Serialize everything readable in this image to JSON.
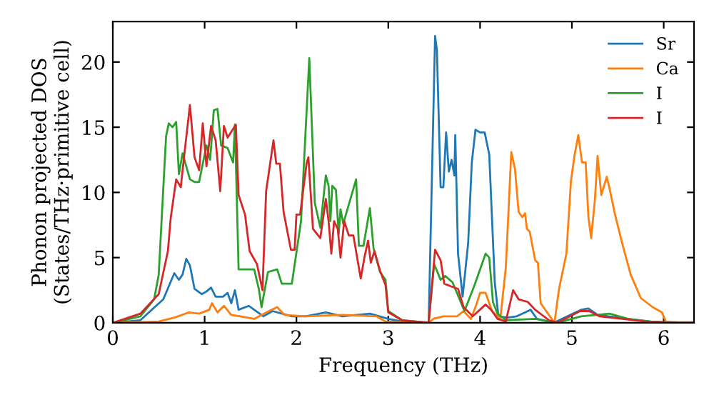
{
  "chart_data": {
    "type": "line",
    "xlabel": "Frequency (THz)",
    "ylabel": "Phonon projected DOS\n(States/THz·primitive cell)",
    "xlim": [
      0,
      6.33
    ],
    "ylim": [
      0,
      23.1
    ],
    "xticks": [
      0,
      1,
      2,
      3,
      4,
      5,
      6
    ],
    "yticks": [
      0,
      5,
      10,
      15,
      20
    ],
    "grid": false,
    "legend": "top right",
    "marker": "none",
    "line_style": "solid",
    "series": [
      {
        "name": "Sr",
        "color": "#1f77b4",
        "x": [
          0,
          0.3,
          0.55,
          0.67,
          0.72,
          0.76,
          0.8,
          0.84,
          0.89,
          0.97,
          1.02,
          1.07,
          1.12,
          1.2,
          1.25,
          1.29,
          1.33,
          1.37,
          1.48,
          1.64,
          1.74,
          1.95,
          2.1,
          2.32,
          2.5,
          2.8,
          3.0,
          3.15,
          3.44,
          3.51,
          3.53,
          3.57,
          3.6,
          3.63,
          3.66,
          3.69,
          3.72,
          3.73,
          3.76,
          3.81,
          3.87,
          3.91,
          3.95,
          4.0,
          4.05,
          4.1,
          4.16,
          4.2,
          4.3,
          4.4,
          4.55,
          4.62,
          4.8,
          5.1,
          5.18,
          5.28,
          5.4,
          5.6,
          5.86,
          6.33
        ],
        "values": [
          0,
          0.2,
          1.8,
          3.8,
          3.3,
          3.7,
          4.9,
          4.4,
          2.6,
          2.2,
          2.4,
          2.7,
          2.0,
          2.0,
          2.3,
          1.5,
          2.5,
          1.0,
          1.3,
          0.5,
          0.9,
          0.5,
          0.5,
          0.8,
          0.5,
          0.7,
          0.3,
          0.1,
          0,
          22.0,
          20.9,
          10.4,
          10.4,
          14.6,
          11.6,
          12.5,
          11.3,
          14.4,
          5.3,
          2.0,
          6.1,
          12.3,
          14.8,
          14.6,
          14.6,
          12.9,
          3.1,
          0.5,
          0.4,
          0.5,
          1.0,
          0.3,
          0,
          1.0,
          1.1,
          0.6,
          0.5,
          0.3,
          0.1,
          0
        ]
      },
      {
        "name": "Ca",
        "color": "#ff7f0e",
        "x": [
          0,
          0.5,
          0.67,
          0.83,
          0.94,
          1.05,
          1.08,
          1.14,
          1.21,
          1.29,
          1.39,
          1.54,
          1.7,
          1.79,
          1.87,
          2.1,
          2.5,
          2.87,
          2.97,
          3.44,
          3.49,
          3.6,
          3.75,
          3.82,
          3.9,
          3.96,
          4.0,
          4.06,
          4.13,
          4.22,
          4.28,
          4.34,
          4.38,
          4.42,
          4.46,
          4.49,
          4.51,
          4.54,
          4.6,
          4.63,
          4.66,
          4.75,
          4.81,
          4.86,
          4.94,
          4.99,
          5.03,
          5.07,
          5.11,
          5.15,
          5.18,
          5.21,
          5.25,
          5.28,
          5.32,
          5.38,
          5.41,
          5.47,
          5.54,
          5.64,
          5.75,
          5.88,
          5.98,
          6.03,
          6.33
        ],
        "values": [
          0,
          0.1,
          0.4,
          0.8,
          0.7,
          1.0,
          1.5,
          0.8,
          1.3,
          0.6,
          0.5,
          0.3,
          0.9,
          1.2,
          0.6,
          0.5,
          0.6,
          0.5,
          0.1,
          0,
          0.3,
          0.5,
          0.5,
          0.9,
          0.3,
          1.4,
          2.3,
          2.3,
          0.9,
          0.3,
          4.2,
          13.1,
          11.8,
          8.5,
          8.1,
          8.4,
          7.2,
          7.0,
          4.8,
          4.6,
          1.5,
          0.6,
          0,
          2.6,
          5.3,
          10.9,
          12.9,
          14.4,
          12.3,
          12.3,
          8.1,
          6.5,
          9.4,
          12.8,
          9.8,
          11.2,
          10.3,
          8.3,
          6.3,
          3.7,
          1.9,
          1.2,
          0.8,
          0,
          0
        ]
      },
      {
        "name": "I",
        "color": "#2ca02c",
        "x": [
          0,
          0.3,
          0.45,
          0.5,
          0.58,
          0.61,
          0.65,
          0.69,
          0.72,
          0.76,
          0.84,
          0.89,
          0.94,
          1.02,
          1.06,
          1.1,
          1.14,
          1.18,
          1.25,
          1.31,
          1.33,
          1.37,
          1.54,
          1.59,
          1.62,
          1.69,
          1.79,
          1.84,
          1.95,
          2.05,
          2.14,
          2.2,
          2.26,
          2.32,
          2.35,
          2.37,
          2.39,
          2.43,
          2.46,
          2.48,
          2.51,
          2.65,
          2.68,
          2.73,
          2.8,
          2.84,
          2.91,
          2.97,
          3.0,
          3.15,
          3.44,
          3.5,
          3.57,
          3.62,
          3.7,
          3.83,
          3.94,
          4.06,
          4.1,
          4.14,
          4.19,
          4.28,
          4.6,
          4.84,
          5.1,
          5.41,
          5.61,
          5.95,
          6.33
        ],
        "values": [
          0,
          0.5,
          1.8,
          3.7,
          14.3,
          15.3,
          15.0,
          15.4,
          11.4,
          13.0,
          11.0,
          10.8,
          10.8,
          13.6,
          12.5,
          16.3,
          16.4,
          13.6,
          13.4,
          12.3,
          15.2,
          4.1,
          4.1,
          2.6,
          1.2,
          3.9,
          4.1,
          3.0,
          3.0,
          7.8,
          20.3,
          9.2,
          7.3,
          11.3,
          10.5,
          7.8,
          10.5,
          10.2,
          6.8,
          8.7,
          7.6,
          11.0,
          5.9,
          5.9,
          8.8,
          5.7,
          3.9,
          3.3,
          0.9,
          0.2,
          0,
          4.5,
          3.3,
          3.6,
          3.1,
          0.9,
          2.9,
          5.3,
          5.0,
          1.6,
          0.7,
          0.2,
          0.3,
          0,
          0.5,
          0.7,
          0.3,
          0,
          0
        ]
      },
      {
        "name": "I",
        "color": "#d62728",
        "x": [
          0,
          0.3,
          0.5,
          0.6,
          0.63,
          0.69,
          0.74,
          0.79,
          0.84,
          0.89,
          0.94,
          0.98,
          1.02,
          1.07,
          1.12,
          1.17,
          1.21,
          1.25,
          1.34,
          1.37,
          1.44,
          1.49,
          1.57,
          1.63,
          1.67,
          1.75,
          1.78,
          1.82,
          1.86,
          1.94,
          1.98,
          2.0,
          2.04,
          2.11,
          2.13,
          2.18,
          2.26,
          2.32,
          2.35,
          2.38,
          2.41,
          2.45,
          2.48,
          2.52,
          2.57,
          2.62,
          2.7,
          2.74,
          2.78,
          2.81,
          2.85,
          2.91,
          2.97,
          3.0,
          3.15,
          3.44,
          3.51,
          3.57,
          3.61,
          3.68,
          3.76,
          3.82,
          3.92,
          4.06,
          4.12,
          4.19,
          4.28,
          4.36,
          4.42,
          4.52,
          4.6,
          4.75,
          4.84,
          5.09,
          5.19,
          5.3,
          5.55,
          5.8,
          6.0,
          6.33
        ],
        "values": [
          0,
          0.7,
          2.2,
          5.5,
          8.0,
          11.0,
          10.4,
          13.6,
          16.7,
          12.7,
          11.7,
          15.3,
          12.0,
          15.1,
          14.0,
          10.1,
          15.1,
          14.2,
          15.2,
          9.8,
          8.3,
          5.5,
          4.5,
          2.5,
          10.1,
          14.0,
          12.2,
          12.2,
          8.5,
          5.6,
          5.6,
          8.3,
          8.3,
          12.2,
          12.7,
          7.2,
          6.5,
          9.5,
          7.8,
          5.3,
          7.8,
          7.2,
          5.0,
          7.8,
          6.7,
          6.7,
          3.4,
          5.0,
          6.3,
          4.6,
          5.5,
          4.0,
          2.9,
          0.8,
          0.2,
          0,
          5.6,
          4.8,
          3.0,
          2.8,
          2.6,
          1.2,
          0.5,
          1.4,
          1.0,
          0.3,
          0.1,
          2.5,
          1.8,
          1.6,
          1.0,
          0.2,
          0,
          0.9,
          0.9,
          0.5,
          0.3,
          0.1,
          0,
          0
        ]
      }
    ]
  }
}
